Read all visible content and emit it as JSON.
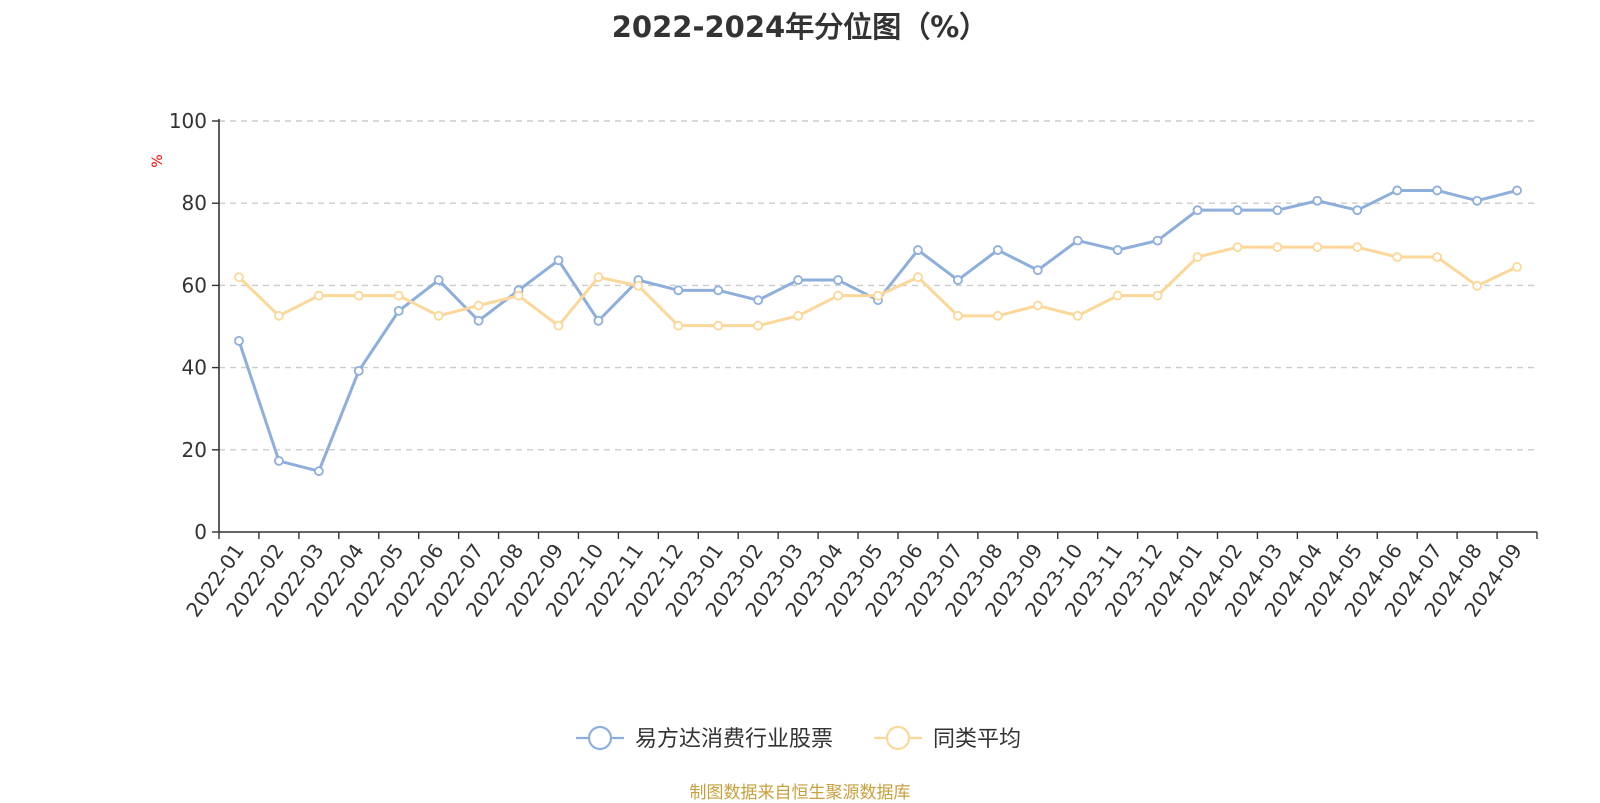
{
  "chart_data": {
    "type": "line",
    "title": "2022-2024年分位图（%）",
    "ylabel": "%",
    "ylim": [
      0,
      100
    ],
    "yticks": [
      "0",
      "20",
      "40",
      "60",
      "80",
      "100"
    ],
    "grid": true,
    "legend_position": "bottom",
    "categories": [
      "2022-01",
      "2022-02",
      "2022-03",
      "2022-04",
      "2022-05",
      "2022-06",
      "2022-07",
      "2022-08",
      "2022-09",
      "2022-10",
      "2022-11",
      "2022-12",
      "2023-01",
      "2023-02",
      "2023-03",
      "2023-04",
      "2023-05",
      "2023-06",
      "2023-07",
      "2023-08",
      "2023-09",
      "2023-10",
      "2023-11",
      "2023-12",
      "2024-01",
      "2024-02",
      "2024-03",
      "2024-04",
      "2024-05",
      "2024-06",
      "2024-07",
      "2024-08",
      "2024-09"
    ],
    "series": [
      {
        "name": "易方达消费行业股票",
        "color": "#8eaedb",
        "values": [
          46.5,
          17.3,
          14.8,
          39.2,
          53.8,
          61.3,
          51.4,
          58.8,
          66.1,
          51.4,
          61.3,
          58.8,
          58.8,
          56.4,
          61.3,
          61.3,
          56.4,
          68.6,
          61.3,
          68.6,
          63.7,
          70.9,
          68.6,
          70.9,
          78.3,
          78.3,
          78.3,
          80.6,
          78.3,
          83.1,
          83.1,
          80.6,
          83.1
        ]
      },
      {
        "name": "同类平均",
        "color": "#fbd89a",
        "values": [
          62.0,
          52.6,
          57.5,
          57.5,
          57.5,
          52.6,
          55.1,
          57.5,
          50.2,
          62.0,
          59.9,
          50.2,
          50.2,
          50.2,
          52.6,
          57.5,
          57.5,
          62.0,
          52.6,
          52.6,
          55.1,
          52.6,
          57.5,
          57.5,
          66.9,
          69.3,
          69.3,
          69.3,
          69.3,
          66.9,
          66.9,
          59.9,
          64.5
        ]
      }
    ],
    "axis_color": "#333333",
    "grid_color": "#cccccc",
    "unit_color": "#ff0000"
  },
  "source": {
    "text": "制图数据来自恒生聚源数据库",
    "color": "#c8a03c"
  }
}
